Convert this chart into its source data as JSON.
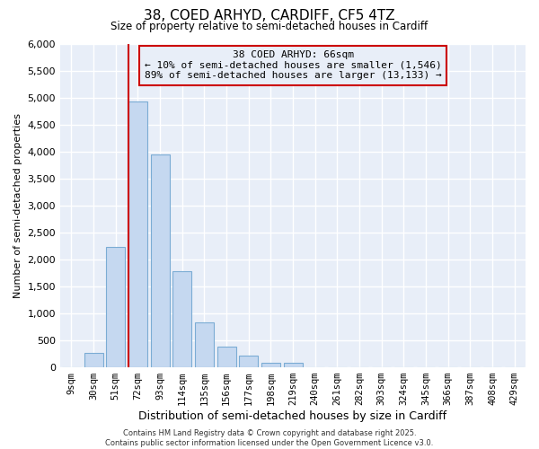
{
  "title1": "38, COED ARHYD, CARDIFF, CF5 4TZ",
  "title2": "Size of property relative to semi-detached houses in Cardiff",
  "xlabel": "Distribution of semi-detached houses by size in Cardiff",
  "ylabel": "Number of semi-detached properties",
  "bar_labels": [
    "9sqm",
    "30sqm",
    "51sqm",
    "72sqm",
    "93sqm",
    "114sqm",
    "135sqm",
    "156sqm",
    "177sqm",
    "198sqm",
    "219sqm",
    "240sqm",
    "261sqm",
    "282sqm",
    "303sqm",
    "324sqm",
    "345sqm",
    "366sqm",
    "387sqm",
    "408sqm",
    "429sqm"
  ],
  "bar_values": [
    0,
    270,
    2240,
    4940,
    3950,
    1790,
    840,
    390,
    210,
    90,
    80,
    0,
    0,
    0,
    0,
    0,
    0,
    0,
    0,
    0,
    0
  ],
  "bar_color": "#c5d8f0",
  "bar_edge_color": "#7bacd4",
  "property_line_color": "#cc0000",
  "ylim": [
    0,
    6000
  ],
  "yticks": [
    0,
    500,
    1000,
    1500,
    2000,
    2500,
    3000,
    3500,
    4000,
    4500,
    5000,
    5500,
    6000
  ],
  "annotation_title": "38 COED ARHYD: 66sqm",
  "annotation_line1": "← 10% of semi-detached houses are smaller (1,546)",
  "annotation_line2": "89% of semi-detached houses are larger (13,133) →",
  "annotation_box_color": "#cc0000",
  "bg_color": "#ffffff",
  "grid_color": "#d0d8e8",
  "footer1": "Contains HM Land Registry data © Crown copyright and database right 2025.",
  "footer2": "Contains public sector information licensed under the Open Government Licence v3.0."
}
